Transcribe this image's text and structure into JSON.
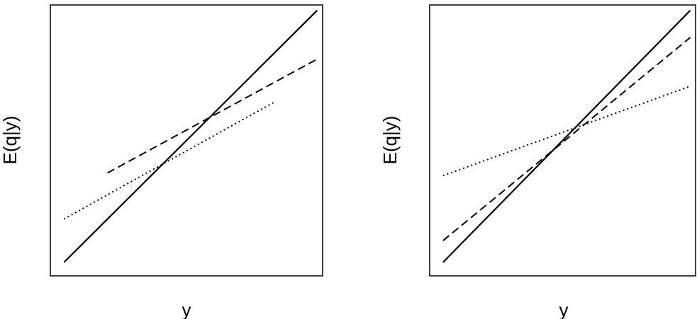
{
  "chart_data": [
    {
      "type": "line",
      "title": "",
      "xlabel": "y",
      "ylabel": "E(q|y)",
      "xlim": [
        0,
        100
      ],
      "ylim": [
        0,
        100
      ],
      "grid": false,
      "legend": "none",
      "ticks": "none",
      "series": [
        {
          "style": "solid",
          "x": [
            5,
            98
          ],
          "y": [
            5,
            98
          ]
        },
        {
          "style": "dashed",
          "x": [
            21,
            98
          ],
          "y": [
            38,
            80
          ]
        },
        {
          "style": "dotted",
          "x": [
            5,
            82
          ],
          "y": [
            21,
            64
          ]
        }
      ]
    },
    {
      "type": "line",
      "title": "",
      "xlabel": "y",
      "ylabel": "E(q|y)",
      "xlim": [
        0,
        100
      ],
      "ylim": [
        0,
        100
      ],
      "grid": false,
      "legend": "none",
      "ticks": "none",
      "series": [
        {
          "style": "solid",
          "x": [
            5,
            98
          ],
          "y": [
            5,
            98
          ]
        },
        {
          "style": "dashed",
          "x": [
            5,
            98
          ],
          "y": [
            13,
            88
          ]
        },
        {
          "style": "dotted",
          "x": [
            5,
            98
          ],
          "y": [
            37,
            70
          ]
        }
      ]
    }
  ]
}
